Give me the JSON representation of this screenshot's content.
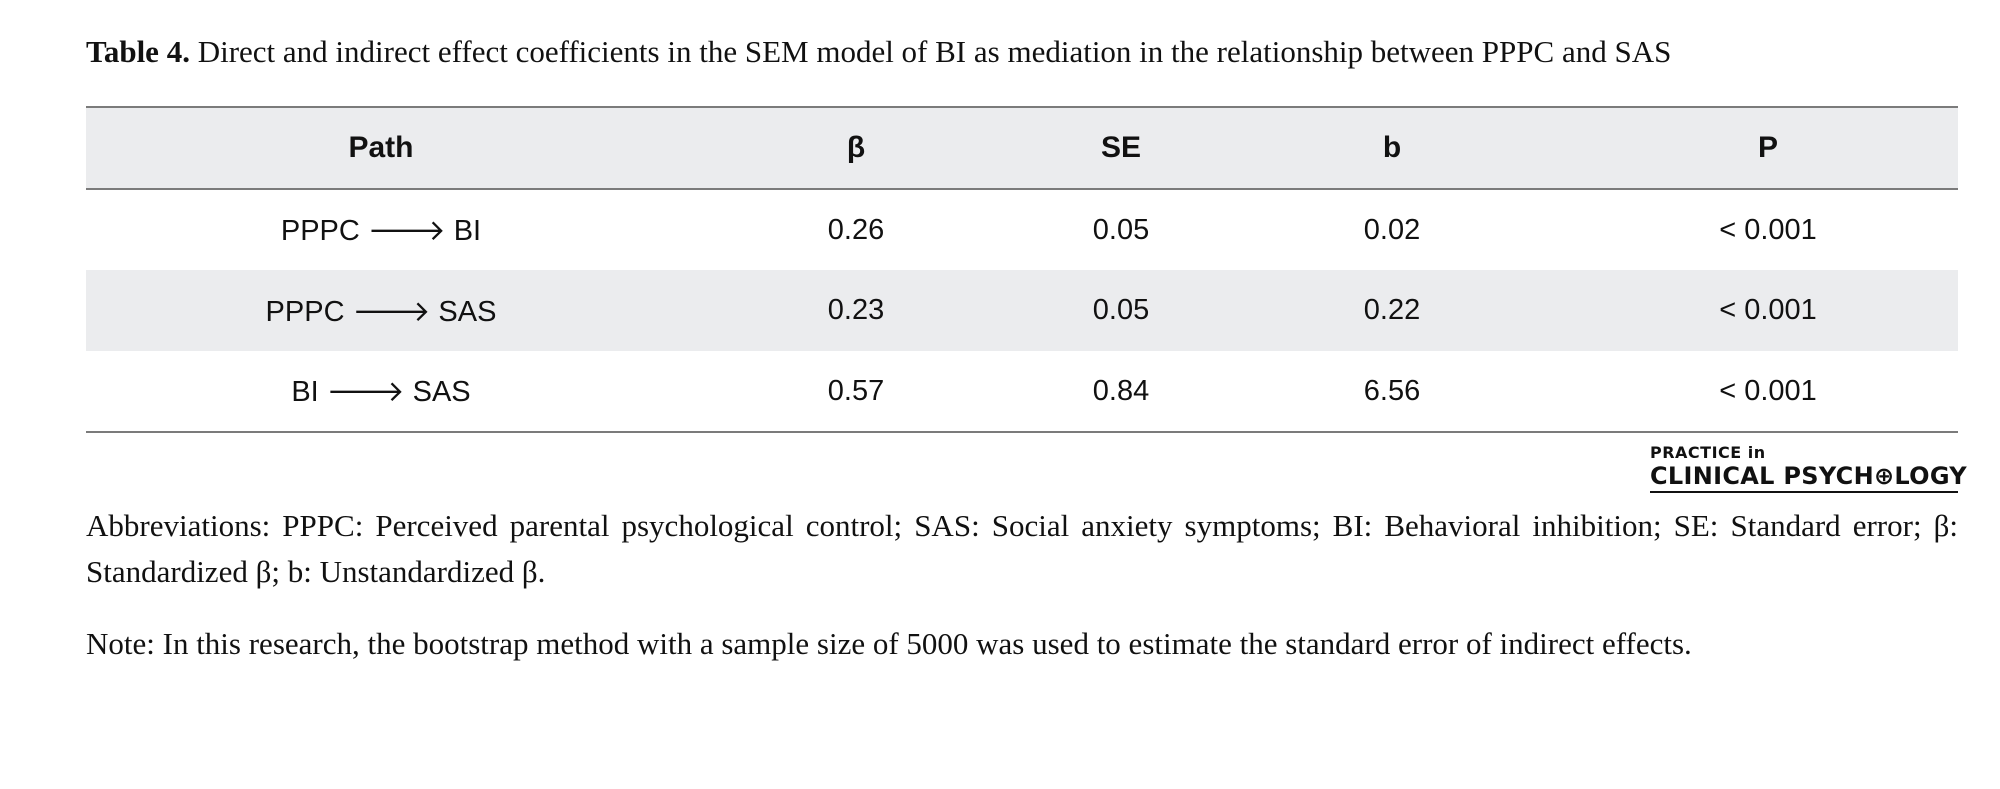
{
  "caption": {
    "lead": "Table 4.",
    "text": " Direct and indirect effect coefficients in the SEM model of BI as mediation in the relationship between PPPC and SAS"
  },
  "table": {
    "headers": [
      "Path",
      "β",
      "SE",
      "b",
      "P"
    ],
    "rows": [
      [
        "PPPC 🡒 BI",
        "0.26",
        "0.05",
        "0.02",
        "< 0.001"
      ],
      [
        "PPPC 🡒 SAS",
        "0.23",
        "0.05",
        "0.22",
        "< 0.001"
      ],
      [
        "BI 🡒 SAS",
        "0.57",
        "0.84",
        "6.56",
        "< 0.001"
      ]
    ]
  },
  "logo": {
    "line1": "PRACTICE in",
    "line2": "CLINICAL PSYCH⊕LOGY"
  },
  "abbreviations": "Abbreviations: PPPC: Perceived parental psychological control; SAS: Social anxiety symptoms; BI: Behavioral inhibition; SE: Standard error; β: Standardized β; b: Unstandardized β.",
  "note": "Note: In this research, the bootstrap method with a sample size of 5000 was used to estimate the standard error of indirect effects."
}
